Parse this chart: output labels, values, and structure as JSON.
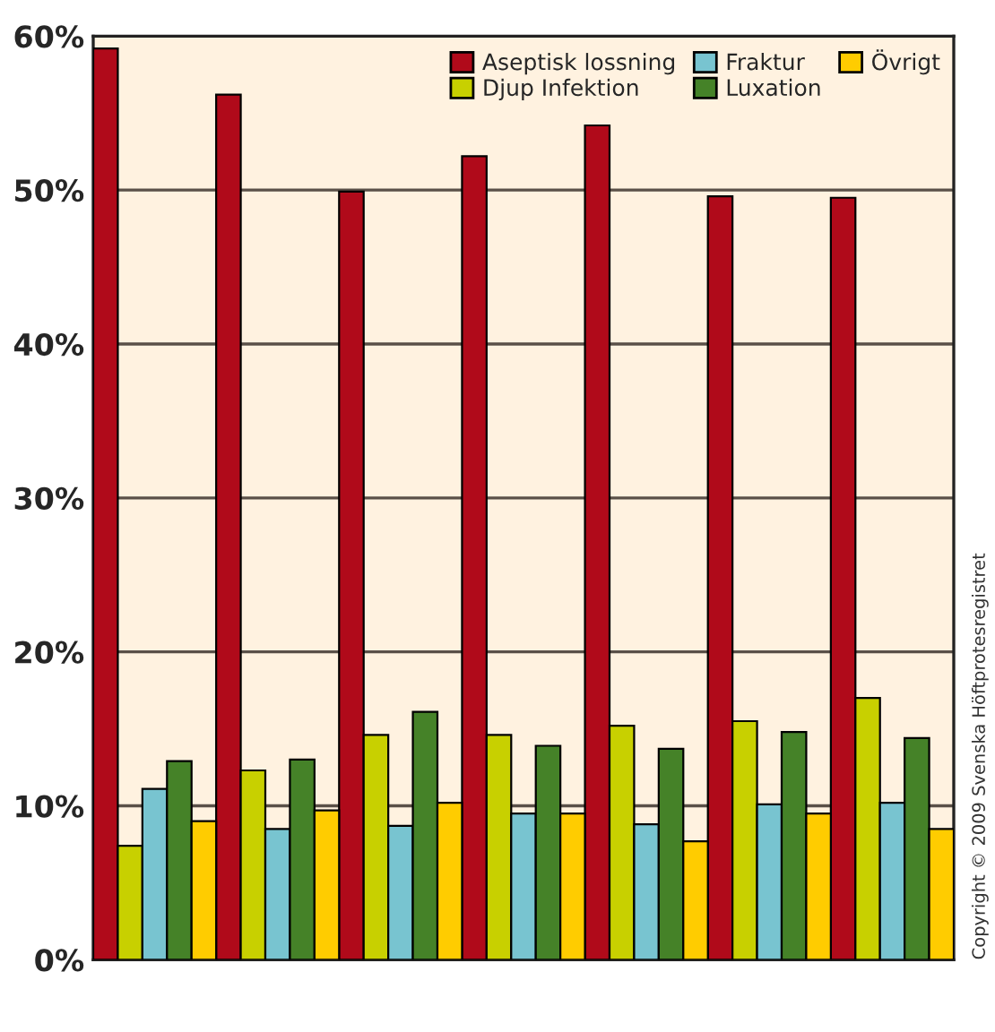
{
  "chart_data": {
    "type": "bar",
    "categories": [
      null,
      null,
      null,
      null,
      null,
      null,
      null
    ],
    "series": [
      {
        "name": "Aseptisk lossning",
        "color": "#b00a1a",
        "values": [
          59.2,
          56.2,
          49.9,
          52.2,
          54.2,
          49.6,
          49.5
        ]
      },
      {
        "name": "Djup Infektion",
        "color": "#c8d000",
        "values": [
          7.4,
          12.3,
          14.6,
          14.6,
          15.2,
          15.5,
          17.0
        ]
      },
      {
        "name": "Fraktur",
        "color": "#78c4d0",
        "values": [
          11.1,
          8.5,
          8.7,
          9.5,
          8.8,
          10.1,
          10.2
        ]
      },
      {
        "name": "Luxation",
        "color": "#458228",
        "values": [
          12.9,
          13.0,
          16.1,
          13.9,
          13.7,
          14.8,
          14.4
        ]
      },
      {
        "name": "Övrigt",
        "color": "#ffcc00",
        "values": [
          9.0,
          9.7,
          10.2,
          9.5,
          7.7,
          9.5,
          8.5
        ]
      }
    ],
    "ylim": [
      0,
      60
    ],
    "yticks": [
      {
        "value": 0,
        "label": "0%"
      },
      {
        "value": 10,
        "label": "10%"
      },
      {
        "value": 20,
        "label": "20%"
      },
      {
        "value": 30,
        "label": "30%"
      },
      {
        "value": 40,
        "label": "40%"
      },
      {
        "value": 50,
        "label": "50%"
      },
      {
        "value": 60,
        "label": "60%"
      }
    ],
    "grid": "y",
    "legend": "top right",
    "tick_labels": "y",
    "annotations": [
      "Copyright © 2009 Svenska Höftprotesregistret"
    ]
  }
}
